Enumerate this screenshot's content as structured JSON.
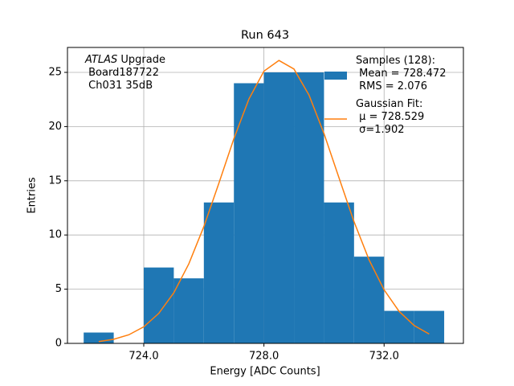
{
  "chart_data": {
    "type": "histogram",
    "title": "Run 643",
    "xlabel": "Energy [ADC Counts]",
    "ylabel": "Entries",
    "annotation": [
      "ATLAS",
      " Upgrade\n Board187722\n Ch031 35dB"
    ],
    "bins": [
      722,
      723,
      724,
      725,
      726,
      727,
      728,
      729,
      730,
      731,
      732,
      733,
      734
    ],
    "series": [
      {
        "name": "Samples (128):\n Mean = 728.472\n RMS = 2.076",
        "color": "#1f77b4",
        "values": [
          1,
          0,
          7,
          6,
          13,
          24,
          25,
          25,
          13,
          8,
          3,
          3
        ]
      },
      {
        "name": "Gaussian Fit:\n μ = 728.529\n σ=1.902",
        "type": "line",
        "color": "#ff7f0e",
        "x": [
          722.5,
          723,
          723.5,
          724,
          724.5,
          725,
          725.5,
          726,
          726.5,
          727,
          727.5,
          728,
          728.5,
          729,
          729.5,
          730,
          730.5,
          731,
          731.5,
          732,
          732.5,
          733,
          733.5
        ],
        "values": [
          0.17,
          0.38,
          0.79,
          1.53,
          2.77,
          4.67,
          7.34,
          10.78,
          14.77,
          18.89,
          22.54,
          25.11,
          26.1,
          25.31,
          22.91,
          19.35,
          15.26,
          11.22,
          7.7,
          4.94,
          2.95,
          1.65,
          0.86
        ]
      }
    ],
    "xlim": [
      721.46,
      734.64
    ],
    "ylim": [
      0,
      27.3
    ],
    "xticks": [
      {
        "value": 724,
        "label": "724.0"
      },
      {
        "value": 728,
        "label": "728.0"
      },
      {
        "value": 732,
        "label": "732.0"
      }
    ],
    "yticks": [
      0,
      5,
      10,
      15,
      20,
      25
    ],
    "grid": true,
    "legend": "upper right"
  }
}
